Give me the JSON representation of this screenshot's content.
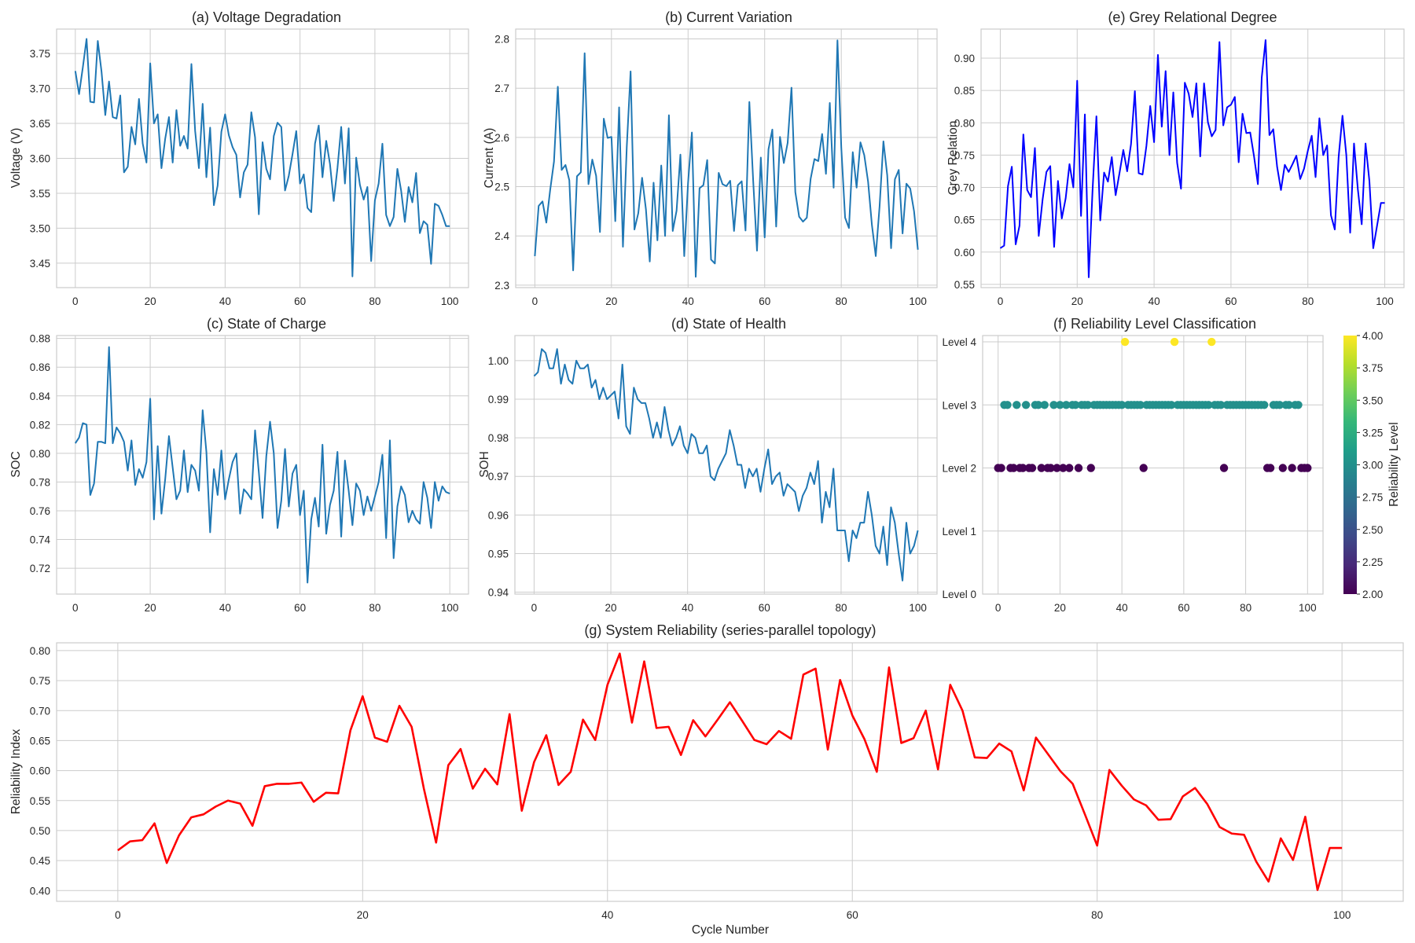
{
  "figure": {
    "background": "#ffffff"
  },
  "chart_data": [
    {
      "id": "a",
      "type": "line",
      "title": "(a) Voltage Degradation",
      "xlabel": "",
      "ylabel": "Voltage (V)",
      "xlim": [
        -5,
        105
      ],
      "ylim": [
        3.415,
        3.785
      ],
      "xticks": [
        0,
        20,
        40,
        60,
        80,
        100
      ],
      "yticks": [
        3.45,
        3.5,
        3.55,
        3.6,
        3.65,
        3.7,
        3.75
      ],
      "ytick_labels": [
        "3.45",
        "3.50",
        "3.55",
        "3.60",
        "3.65",
        "3.70",
        "3.75"
      ],
      "grid": true,
      "color": "#1f77b4",
      "x_start": 0,
      "values": [
        3.725,
        3.692,
        3.73,
        3.771,
        3.681,
        3.68,
        3.768,
        3.724,
        3.662,
        3.71,
        3.659,
        3.657,
        3.69,
        3.58,
        3.588,
        3.645,
        3.62,
        3.685,
        3.621,
        3.594,
        3.736,
        3.65,
        3.663,
        3.586,
        3.628,
        3.659,
        3.594,
        3.669,
        3.618,
        3.632,
        3.614,
        3.735,
        3.639,
        3.586,
        3.678,
        3.573,
        3.644,
        3.533,
        3.561,
        3.638,
        3.663,
        3.633,
        3.616,
        3.605,
        3.544,
        3.58,
        3.591,
        3.666,
        3.63,
        3.52,
        3.623,
        3.585,
        3.57,
        3.632,
        3.651,
        3.645,
        3.554,
        3.575,
        3.606,
        3.639,
        3.564,
        3.577,
        3.529,
        3.523,
        3.621,
        3.647,
        3.573,
        3.625,
        3.592,
        3.539,
        3.586,
        3.645,
        3.564,
        3.643,
        3.431,
        3.601,
        3.562,
        3.541,
        3.559,
        3.453,
        3.54,
        3.564,
        3.621,
        3.519,
        3.503,
        3.516,
        3.585,
        3.554,
        3.509,
        3.559,
        3.537,
        3.579,
        3.493,
        3.51,
        3.505,
        3.449,
        3.535,
        3.532,
        3.519,
        3.503,
        3.503
      ]
    },
    {
      "id": "b",
      "type": "line",
      "title": "(b) Current Variation",
      "xlabel": "",
      "ylabel": "Current (A)",
      "xlim": [
        -5,
        105
      ],
      "ylim": [
        2.295,
        2.82
      ],
      "xticks": [
        0,
        20,
        40,
        60,
        80,
        100
      ],
      "yticks": [
        2.3,
        2.4,
        2.5,
        2.6,
        2.7,
        2.8
      ],
      "ytick_labels": [
        "2.3",
        "2.4",
        "2.5",
        "2.6",
        "2.7",
        "2.8"
      ],
      "grid": true,
      "color": "#1f77b4",
      "x_start": 0,
      "values": [
        2.359,
        2.461,
        2.47,
        2.427,
        2.493,
        2.551,
        2.703,
        2.534,
        2.544,
        2.513,
        2.33,
        2.521,
        2.529,
        2.771,
        2.505,
        2.555,
        2.522,
        2.408,
        2.638,
        2.599,
        2.601,
        2.43,
        2.661,
        2.378,
        2.581,
        2.734,
        2.413,
        2.446,
        2.518,
        2.454,
        2.348,
        2.508,
        2.391,
        2.543,
        2.4,
        2.645,
        2.41,
        2.451,
        2.565,
        2.359,
        2.508,
        2.61,
        2.317,
        2.497,
        2.503,
        2.554,
        2.352,
        2.344,
        2.528,
        2.505,
        2.501,
        2.512,
        2.41,
        2.503,
        2.511,
        2.411,
        2.672,
        2.512,
        2.37,
        2.559,
        2.397,
        2.576,
        2.616,
        2.419,
        2.601,
        2.548,
        2.589,
        2.701,
        2.489,
        2.439,
        2.429,
        2.437,
        2.516,
        2.556,
        2.552,
        2.607,
        2.526,
        2.67,
        2.498,
        2.797,
        2.58,
        2.437,
        2.416,
        2.57,
        2.498,
        2.59,
        2.564,
        2.51,
        2.422,
        2.359,
        2.46,
        2.592,
        2.523,
        2.375,
        2.515,
        2.534,
        2.405,
        2.506,
        2.496,
        2.45,
        2.372
      ]
    },
    {
      "id": "e",
      "type": "line",
      "title": "(e) Grey Relational Degree",
      "xlabel": "",
      "ylabel": "Grey Relation",
      "xlim": [
        -5,
        105
      ],
      "ylim": [
        0.545,
        0.945
      ],
      "xticks": [
        0,
        20,
        40,
        60,
        80,
        100
      ],
      "yticks": [
        0.55,
        0.6,
        0.65,
        0.7,
        0.75,
        0.8,
        0.85,
        0.9
      ],
      "ytick_labels": [
        "0.55",
        "0.60",
        "0.65",
        "0.70",
        "0.75",
        "0.80",
        "0.85",
        "0.90"
      ],
      "grid": true,
      "color": "#0000ff",
      "x_start": 0,
      "values": [
        0.606,
        0.61,
        0.702,
        0.732,
        0.612,
        0.641,
        0.782,
        0.696,
        0.685,
        0.761,
        0.625,
        0.681,
        0.724,
        0.733,
        0.608,
        0.71,
        0.652,
        0.683,
        0.736,
        0.7,
        0.865,
        0.656,
        0.813,
        0.561,
        0.696,
        0.81,
        0.649,
        0.723,
        0.709,
        0.747,
        0.688,
        0.722,
        0.758,
        0.725,
        0.767,
        0.849,
        0.722,
        0.72,
        0.764,
        0.826,
        0.77,
        0.905,
        0.794,
        0.88,
        0.75,
        0.847,
        0.738,
        0.698,
        0.862,
        0.845,
        0.809,
        0.861,
        0.748,
        0.861,
        0.801,
        0.779,
        0.789,
        0.925,
        0.796,
        0.824,
        0.828,
        0.84,
        0.739,
        0.814,
        0.784,
        0.785,
        0.748,
        0.705,
        0.87,
        0.928,
        0.781,
        0.79,
        0.732,
        0.696,
        0.735,
        0.724,
        0.736,
        0.749,
        0.713,
        0.729,
        0.757,
        0.78,
        0.716,
        0.807,
        0.75,
        0.765,
        0.657,
        0.635,
        0.747,
        0.811,
        0.75,
        0.63,
        0.768,
        0.697,
        0.643,
        0.768,
        0.71,
        0.606,
        0.641,
        0.676,
        0.676
      ]
    },
    {
      "id": "c",
      "type": "line",
      "title": "(c) State of Charge",
      "xlabel": "",
      "ylabel": "SOC",
      "xlim": [
        -5,
        105
      ],
      "ylim": [
        0.702,
        0.882
      ],
      "xticks": [
        0,
        20,
        40,
        60,
        80,
        100
      ],
      "yticks": [
        0.72,
        0.74,
        0.76,
        0.78,
        0.8,
        0.82,
        0.84,
        0.86,
        0.88
      ],
      "ytick_labels": [
        "0.72",
        "0.74",
        "0.76",
        "0.78",
        "0.80",
        "0.82",
        "0.84",
        "0.86",
        "0.88"
      ],
      "grid": true,
      "color": "#1f77b4",
      "x_start": 0,
      "values": [
        0.807,
        0.811,
        0.821,
        0.82,
        0.771,
        0.779,
        0.808,
        0.808,
        0.807,
        0.874,
        0.807,
        0.818,
        0.814,
        0.808,
        0.788,
        0.809,
        0.778,
        0.789,
        0.783,
        0.794,
        0.838,
        0.754,
        0.805,
        0.758,
        0.782,
        0.812,
        0.79,
        0.768,
        0.774,
        0.802,
        0.773,
        0.792,
        0.788,
        0.774,
        0.83,
        0.801,
        0.745,
        0.789,
        0.771,
        0.802,
        0.768,
        0.782,
        0.794,
        0.8,
        0.758,
        0.775,
        0.772,
        0.768,
        0.816,
        0.787,
        0.755,
        0.798,
        0.822,
        0.8,
        0.748,
        0.767,
        0.803,
        0.763,
        0.786,
        0.792,
        0.757,
        0.774,
        0.71,
        0.754,
        0.769,
        0.749,
        0.806,
        0.744,
        0.764,
        0.774,
        0.801,
        0.742,
        0.795,
        0.774,
        0.75,
        0.779,
        0.774,
        0.757,
        0.77,
        0.76,
        0.77,
        0.78,
        0.799,
        0.741,
        0.809,
        0.727,
        0.763,
        0.777,
        0.771,
        0.752,
        0.76,
        0.754,
        0.751,
        0.78,
        0.769,
        0.748,
        0.78,
        0.767,
        0.777,
        0.773,
        0.772
      ]
    },
    {
      "id": "d",
      "type": "line",
      "title": "(d) State of Health",
      "xlabel": "",
      "ylabel": "SOH",
      "xlim": [
        -5,
        105
      ],
      "ylim": [
        0.9395,
        1.0065
      ],
      "xticks": [
        0,
        20,
        40,
        60,
        80,
        100
      ],
      "yticks": [
        0.94,
        0.95,
        0.96,
        0.97,
        0.98,
        0.99,
        1.0
      ],
      "ytick_labels": [
        "0.94",
        "0.95",
        "0.96",
        "0.97",
        "0.98",
        "0.99",
        "1.00"
      ],
      "grid": true,
      "color": "#1f77b4",
      "x_start": 0,
      "values": [
        0.996,
        0.997,
        1.003,
        1.002,
        0.998,
        0.998,
        1.003,
        0.994,
        0.999,
        0.995,
        0.994,
        1.0,
        0.998,
        0.998,
        0.999,
        0.993,
        0.995,
        0.99,
        0.993,
        0.99,
        0.991,
        0.992,
        0.985,
        0.999,
        0.983,
        0.981,
        0.993,
        0.99,
        0.989,
        0.989,
        0.985,
        0.98,
        0.984,
        0.98,
        0.988,
        0.982,
        0.978,
        0.98,
        0.983,
        0.978,
        0.976,
        0.981,
        0.98,
        0.976,
        0.976,
        0.978,
        0.97,
        0.969,
        0.972,
        0.974,
        0.976,
        0.982,
        0.978,
        0.973,
        0.973,
        0.967,
        0.972,
        0.97,
        0.972,
        0.966,
        0.972,
        0.977,
        0.968,
        0.97,
        0.971,
        0.965,
        0.968,
        0.967,
        0.966,
        0.961,
        0.965,
        0.967,
        0.971,
        0.968,
        0.974,
        0.958,
        0.966,
        0.962,
        0.972,
        0.956,
        0.956,
        0.956,
        0.948,
        0.956,
        0.954,
        0.958,
        0.958,
        0.966,
        0.96,
        0.952,
        0.95,
        0.957,
        0.947,
        0.962,
        0.958,
        0.95,
        0.943,
        0.958,
        0.95,
        0.952,
        0.956
      ]
    },
    {
      "id": "f",
      "type": "scatter",
      "title": "(f) Reliability Level Classification",
      "xlabel": "",
      "ylabel": "",
      "xlim": [
        -5,
        105
      ],
      "ylim": [
        0,
        4.1
      ],
      "xticks": [
        0,
        20,
        40,
        60,
        80,
        100
      ],
      "yticks": [
        0,
        1,
        2,
        3,
        4
      ],
      "ytick_labels": [
        "Level 0",
        "Level 1",
        "Level 2",
        "Level 3",
        "Level 4"
      ],
      "grid": true,
      "colormap": "viridis",
      "colorbar": {
        "label": "Reliability Level",
        "range": [
          2.0,
          4.0
        ],
        "ticks": [
          "2.00",
          "2.25",
          "2.50",
          "2.75",
          "3.00",
          "3.25",
          "3.50",
          "3.75",
          "4.00"
        ],
        "stops": [
          "#440154",
          "#482878",
          "#3e4a89",
          "#31688e",
          "#26828e",
          "#1f9e89",
          "#35b779",
          "#6ece58",
          "#b5de2b",
          "#fde725"
        ]
      },
      "x_start": 0,
      "levels": [
        2,
        2,
        3,
        3,
        2,
        2,
        3,
        2,
        2,
        3,
        2,
        2,
        3,
        3,
        2,
        3,
        2,
        2,
        3,
        2,
        3,
        2,
        3,
        2,
        3,
        3,
        2,
        3,
        3,
        3,
        2,
        3,
        3,
        3,
        3,
        3,
        3,
        3,
        3,
        3,
        3,
        4,
        3,
        3,
        3,
        3,
        3,
        2,
        3,
        3,
        3,
        3,
        3,
        3,
        3,
        3,
        3,
        4,
        3,
        3,
        3,
        3,
        3,
        3,
        3,
        3,
        3,
        3,
        3,
        4,
        3,
        3,
        3,
        2,
        3,
        3,
        3,
        3,
        3,
        3,
        3,
        3,
        3,
        3,
        3,
        3,
        3,
        2,
        2,
        3,
        3,
        3,
        2,
        3,
        3,
        2,
        3,
        3,
        2,
        2,
        2
      ]
    },
    {
      "id": "g",
      "type": "line",
      "title": "(g) System Reliability (series-parallel topology)",
      "xlabel": "Cycle Number",
      "ylabel": "Reliability Index",
      "xlim": [
        -5,
        105
      ],
      "ylim": [
        0.382,
        0.813
      ],
      "xticks": [
        0,
        20,
        40,
        60,
        80,
        100
      ],
      "yticks": [
        0.4,
        0.45,
        0.5,
        0.55,
        0.6,
        0.65,
        0.7,
        0.75,
        0.8
      ],
      "ytick_labels": [
        "0.40",
        "0.45",
        "0.50",
        "0.55",
        "0.60",
        "0.65",
        "0.70",
        "0.75",
        "0.80"
      ],
      "grid": true,
      "color": "#ff0000",
      "x_start": 0,
      "values": [
        0.467,
        0.482,
        0.484,
        0.512,
        0.446,
        0.492,
        0.522,
        0.527,
        0.54,
        0.55,
        0.545,
        0.508,
        0.574,
        0.578,
        0.578,
        0.58,
        0.548,
        0.563,
        0.562,
        0.667,
        0.724,
        0.655,
        0.648,
        0.708,
        0.673,
        0.57,
        0.48,
        0.609,
        0.636,
        0.57,
        0.603,
        0.577,
        0.694,
        0.533,
        0.614,
        0.659,
        0.576,
        0.598,
        0.685,
        0.651,
        0.743,
        0.795,
        0.68,
        0.782,
        0.671,
        0.673,
        0.626,
        0.684,
        0.657,
        0.685,
        0.714,
        0.683,
        0.651,
        0.644,
        0.666,
        0.653,
        0.76,
        0.77,
        0.635,
        0.751,
        0.692,
        0.652,
        0.598,
        0.772,
        0.646,
        0.654,
        0.7,
        0.602,
        0.743,
        0.7,
        0.622,
        0.621,
        0.645,
        0.632,
        0.567,
        0.655,
        0.627,
        0.599,
        0.578,
        0.527,
        0.475,
        0.601,
        0.575,
        0.552,
        0.542,
        0.518,
        0.519,
        0.557,
        0.571,
        0.544,
        0.506,
        0.495,
        0.493,
        0.448,
        0.415,
        0.487,
        0.451,
        0.523,
        0.401,
        0.471,
        0.471
      ]
    }
  ]
}
